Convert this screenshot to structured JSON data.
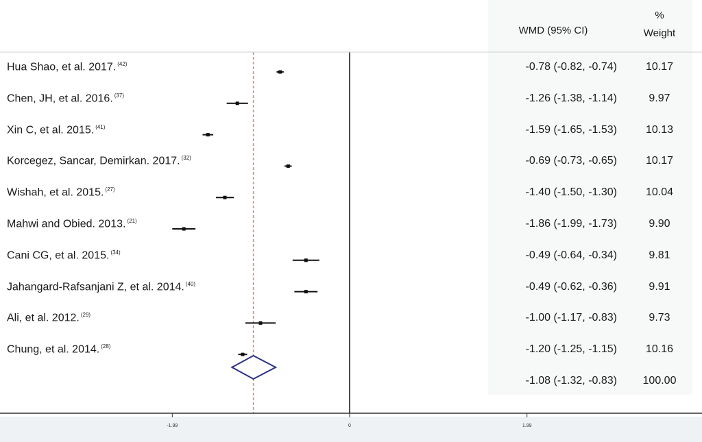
{
  "header": {
    "wmd": "WMD (95% CI)",
    "weight_line1": "%",
    "weight_line2": "Weight"
  },
  "chart_data": {
    "type": "forest",
    "xlabel": "",
    "ticks": [
      {
        "value": -1.99,
        "label": "-1.99"
      },
      {
        "value": 0,
        "label": "0"
      },
      {
        "value": 1.99,
        "label": "1.99"
      }
    ],
    "studies": [
      {
        "label": "Hua Shao, et al. 2017.",
        "ref": "(42)",
        "wmd": -0.78,
        "lo": -0.82,
        "hi": -0.74,
        "wmd_text": "-0.78 (-0.82, -0.74)",
        "weight": "10.17"
      },
      {
        "label": "Chen, JH, et al. 2016.",
        "ref": "(37)",
        "wmd": -1.26,
        "lo": -1.38,
        "hi": -1.14,
        "wmd_text": "-1.26 (-1.38, -1.14)",
        "weight": "9.97"
      },
      {
        "label": "Xin C, et al. 2015.",
        "ref": "(41)",
        "wmd": -1.59,
        "lo": -1.65,
        "hi": -1.53,
        "wmd_text": "-1.59 (-1.65, -1.53)",
        "weight": "10.13"
      },
      {
        "label": "Korcegez, Sancar, Demirkan. 2017.",
        "ref": "(32)",
        "wmd": -0.69,
        "lo": -0.73,
        "hi": -0.65,
        "wmd_text": "-0.69 (-0.73, -0.65)",
        "weight": "10.17"
      },
      {
        "label": "Wishah, et al. 2015.",
        "ref": "(27)",
        "wmd": -1.4,
        "lo": -1.5,
        "hi": -1.3,
        "wmd_text": "-1.40 (-1.50, -1.30)",
        "weight": "10.04"
      },
      {
        "label": "Mahwi and Obied. 2013.",
        "ref": "(21)",
        "wmd": -1.86,
        "lo": -1.99,
        "hi": -1.73,
        "wmd_text": "-1.86 (-1.99, -1.73)",
        "weight": "9.90"
      },
      {
        "label": "Cani CG, et al. 2015.",
        "ref": "(34)",
        "wmd": -0.49,
        "lo": -0.64,
        "hi": -0.34,
        "wmd_text": "-0.49 (-0.64, -0.34)",
        "weight": "9.81"
      },
      {
        "label": "Jahangard-Rafsanjani Z, et al. 2014.",
        "ref": "(40)",
        "wmd": -0.49,
        "lo": -0.62,
        "hi": -0.36,
        "wmd_text": "-0.49 (-0.62, -0.36)",
        "weight": "9.91"
      },
      {
        "label": "Ali, et al. 2012.",
        "ref": "(29)",
        "wmd": -1.0,
        "lo": -1.17,
        "hi": -0.83,
        "wmd_text": "-1.00 (-1.17, -0.83)",
        "weight": "9.73"
      },
      {
        "label": "Chung, et al. 2014.",
        "ref": "(28)",
        "wmd": -1.2,
        "lo": -1.25,
        "hi": -1.15,
        "wmd_text": "-1.20 (-1.25, -1.15)",
        "weight": "10.16"
      }
    ],
    "overall": {
      "wmd": -1.08,
      "lo": -1.32,
      "hi": -0.83,
      "wmd_text": "-1.08 (-1.32, -0.83)",
      "weight": "100.00"
    }
  }
}
